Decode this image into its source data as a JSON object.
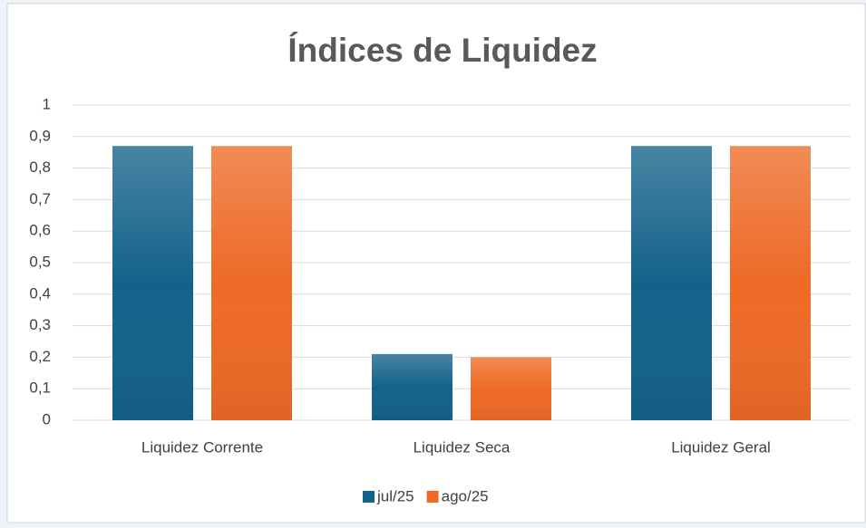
{
  "chart_data": {
    "type": "bar",
    "title": "Índices de Liquidez",
    "categories": [
      "Liquidez Corrente",
      "Liquidez Seca",
      "Liquidez Geral"
    ],
    "series": [
      {
        "name": "jul/25",
        "color": "#14628a",
        "values": [
          0.87,
          0.21,
          0.87
        ]
      },
      {
        "name": "ago/25",
        "color": "#ee6a26",
        "values": [
          0.87,
          0.2,
          0.87
        ]
      }
    ],
    "ylim": [
      0,
      1
    ],
    "yticks": [
      0,
      {
        "value": 0.1,
        "label": "0,1"
      },
      {
        "value": 0.2,
        "label": "0,2"
      },
      {
        "value": 0.3,
        "label": "0,3"
      },
      {
        "value": 0.4,
        "label": "0,4"
      },
      {
        "value": 0.5,
        "label": "0,5"
      },
      {
        "value": 0.6,
        "label": "0,6"
      },
      {
        "value": 0.7,
        "label": "0,7"
      },
      {
        "value": 0.8,
        "label": "0,8"
      },
      {
        "value": 0.9,
        "label": "0,9"
      },
      1
    ],
    "grid": true,
    "legend": "bottom"
  }
}
